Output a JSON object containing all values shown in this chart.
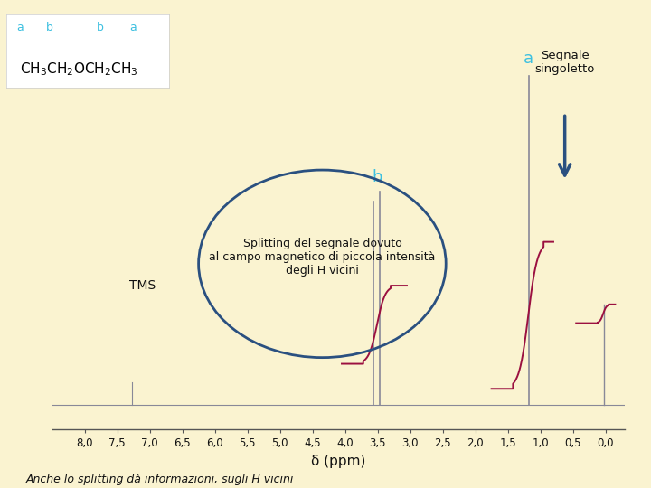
{
  "background_color": "#FAF3D0",
  "fig_size": [
    7.2,
    5.4
  ],
  "dpi": 100,
  "xlim": [
    8.5,
    -0.3
  ],
  "ylim": [
    -0.08,
    1.2
  ],
  "xlabel": "δ (ppm)",
  "xlabel_fontsize": 11,
  "xticks": [
    8.0,
    7.5,
    7.0,
    6.5,
    6.0,
    5.5,
    5.0,
    4.5,
    4.0,
    3.5,
    3.0,
    2.5,
    2.0,
    1.5,
    1.0,
    0.5,
    0.0
  ],
  "xtick_labels": [
    "8,0",
    "7,5",
    "7,0",
    "6,5",
    "6,0",
    "5,5",
    "5,0",
    "4,5",
    "4,0",
    "3,5",
    "3,0",
    "2,5",
    "2,0",
    "1,5",
    "1,0",
    "0,5",
    "0,0"
  ],
  "spectrum_color": "#888898",
  "integral_color": "#9b1040",
  "label_color": "#3dc0e0",
  "annotation_color": "#2a5080",
  "text_color": "#111111",
  "title_text": "Splitting del segnale dovuto\nal campo magnetico di piccola intensità\ndegli H vicini",
  "footnote_text": "Anche lo splitting dà informazioni, sugli H vicini",
  "segnale_text": "Segnale\nsingoletto",
  "tms_text": "TMS",
  "label_a_text": "a",
  "label_b_text": "b",
  "molecule_labels": [
    "a",
    "b",
    "b",
    "a"
  ]
}
